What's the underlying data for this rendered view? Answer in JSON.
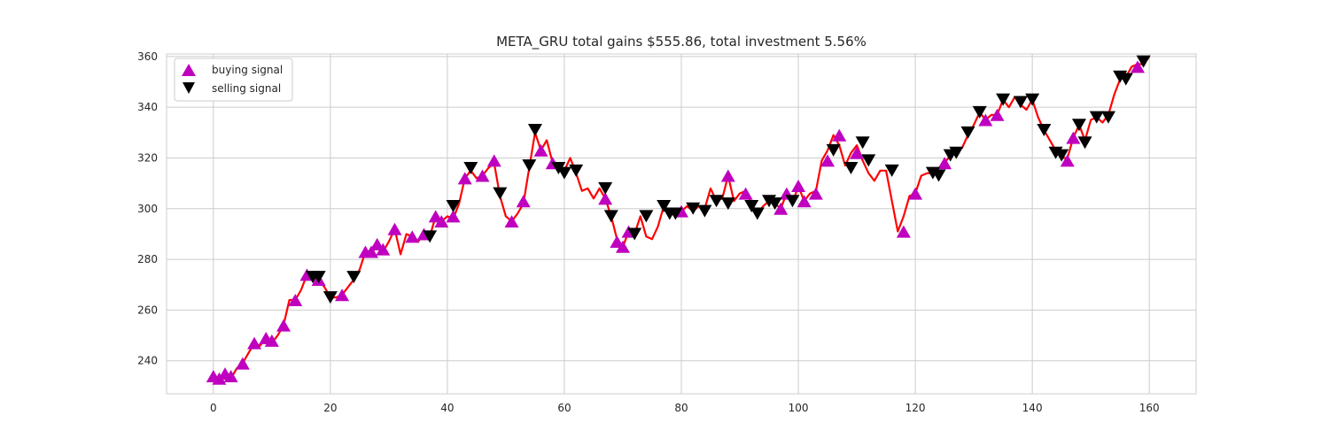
{
  "chart_data": {
    "type": "line",
    "title": "META_GRU total gains $555.86, total investment 5.56%",
    "xlabel": "",
    "ylabel": "",
    "xlim": [
      -8,
      168
    ],
    "ylim": [
      227,
      361
    ],
    "xticks": [
      0,
      20,
      40,
      60,
      80,
      100,
      120,
      140,
      160
    ],
    "yticks": [
      240,
      260,
      280,
      300,
      320,
      340,
      360
    ],
    "grid": true,
    "legend_position": "top-left",
    "colors": {
      "line": "#ff0000",
      "buy": "#bf00bf",
      "sell": "#000000",
      "grid": "#cccccc",
      "frame": "#cccccc"
    },
    "legend": [
      {
        "label": "buying signal",
        "marker": "triangle-up"
      },
      {
        "label": "selling signal",
        "marker": "triangle-down"
      }
    ],
    "series": [
      {
        "x": [
          0,
          1,
          2,
          3,
          4,
          5,
          6,
          7,
          8,
          9,
          10,
          11,
          12,
          13,
          14,
          15,
          16,
          17,
          18,
          19,
          20,
          21,
          22,
          23,
          24,
          25,
          26,
          27,
          28,
          29,
          30,
          31,
          32,
          33,
          34,
          35,
          36,
          37,
          38,
          39,
          40,
          41,
          42,
          43,
          44,
          45,
          46,
          47,
          48,
          49,
          50,
          51,
          52,
          53,
          54,
          55,
          56,
          57,
          58,
          59,
          60,
          61,
          62,
          63,
          64,
          65,
          66,
          67,
          68,
          69,
          70,
          71,
          72,
          73,
          74,
          75,
          76,
          77,
          78,
          79,
          80,
          81,
          82,
          83,
          84,
          85,
          86,
          87,
          88,
          89,
          90,
          91,
          92,
          93,
          94,
          95,
          96,
          97,
          98,
          99,
          100,
          101,
          102,
          103,
          104,
          105,
          106,
          107,
          108,
          109,
          110,
          111,
          112,
          113,
          114,
          115,
          116,
          117,
          118,
          119,
          120,
          121,
          122,
          123,
          124,
          125,
          126,
          127,
          128,
          129,
          130,
          131,
          132,
          133,
          134,
          135,
          136,
          137,
          138,
          139,
          140,
          141,
          142,
          143,
          144,
          145,
          146,
          147,
          148,
          149,
          150,
          151,
          152,
          153,
          154,
          155,
          156,
          157,
          158,
          159,
          160
        ],
        "y": [
          234,
          233,
          235,
          233,
          237,
          239,
          243,
          247,
          246,
          249,
          247,
          250,
          254,
          264,
          264,
          268,
          274,
          273,
          272,
          269,
          265,
          265,
          266,
          269,
          272,
          276,
          283,
          282,
          286,
          283,
          287,
          292,
          282,
          290,
          289,
          287,
          290,
          289,
          297,
          295,
          297,
          296,
          302,
          312,
          315,
          312,
          313,
          316,
          318,
          305,
          297,
          295,
          298,
          302,
          316,
          330,
          323,
          327,
          318,
          316,
          315,
          320,
          314,
          307,
          308,
          304,
          308,
          304,
          297,
          288,
          285,
          291,
          290,
          297,
          289,
          288,
          293,
          301,
          299,
          297,
          299,
          301,
          299,
          301,
          300,
          308,
          303,
          304,
          313,
          303,
          306,
          307,
          302,
          298,
          301,
          303,
          302,
          300,
          306,
          302,
          309,
          303,
          306,
          307,
          319,
          323,
          329,
          325,
          317,
          322,
          325,
          319,
          314,
          311,
          315,
          315,
          303,
          291,
          297,
          305,
          306,
          313,
          314,
          314,
          316,
          318,
          321,
          322,
          324,
          329,
          333,
          338,
          335,
          337,
          337,
          343,
          340,
          344,
          341,
          339,
          343,
          336,
          331,
          327,
          323,
          320,
          320,
          328,
          333,
          327,
          335,
          336,
          334,
          337,
          345,
          351,
          352,
          356,
          357,
          357,
          360
        ]
      }
    ],
    "buy_signals": {
      "x": [
        0,
        1,
        2,
        3,
        5,
        7,
        9,
        10,
        12,
        14,
        16,
        18,
        22,
        26,
        27,
        28,
        29,
        31,
        34,
        36,
        38,
        39,
        41,
        43,
        46,
        48,
        51,
        53,
        56,
        58,
        67,
        69,
        70,
        71,
        80,
        88,
        91,
        97,
        98,
        100,
        101,
        103,
        105,
        107,
        110,
        118,
        120,
        125,
        132,
        134,
        146,
        147,
        158
      ],
      "y": [
        234,
        233,
        235,
        234,
        239,
        247,
        249,
        248,
        254,
        264,
        274,
        272,
        266,
        283,
        283,
        286,
        284,
        292,
        289,
        290,
        297,
        295,
        297,
        312,
        313,
        319,
        295,
        303,
        323,
        318,
        304,
        287,
        285,
        291,
        299,
        313,
        306,
        300,
        306,
        309,
        303,
        306,
        319,
        329,
        322,
        291,
        306,
        318,
        335,
        337,
        319,
        328,
        356
      ]
    },
    "sell_signals": {
      "x": [
        17,
        18,
        20,
        24,
        37,
        41,
        44,
        49,
        54,
        55,
        59,
        60,
        62,
        67,
        68,
        72,
        74,
        77,
        78,
        79,
        82,
        84,
        86,
        88,
        92,
        93,
        95,
        96,
        99,
        106,
        109,
        111,
        112,
        116,
        123,
        124,
        126,
        127,
        129,
        131,
        135,
        138,
        140,
        142,
        144,
        145,
        148,
        149,
        151,
        153,
        155,
        156,
        159
      ],
      "y": [
        273,
        273,
        265,
        273,
        289,
        301,
        316,
        306,
        317,
        331,
        316,
        314,
        315,
        308,
        297,
        290,
        297,
        301,
        298,
        298,
        300,
        299,
        303,
        302,
        301,
        298,
        303,
        302,
        303,
        323,
        316,
        326,
        319,
        315,
        314,
        313,
        321,
        322,
        330,
        338,
        343,
        342,
        343,
        331,
        322,
        321,
        333,
        326,
        336,
        336,
        352,
        351,
        358
      ]
    }
  }
}
